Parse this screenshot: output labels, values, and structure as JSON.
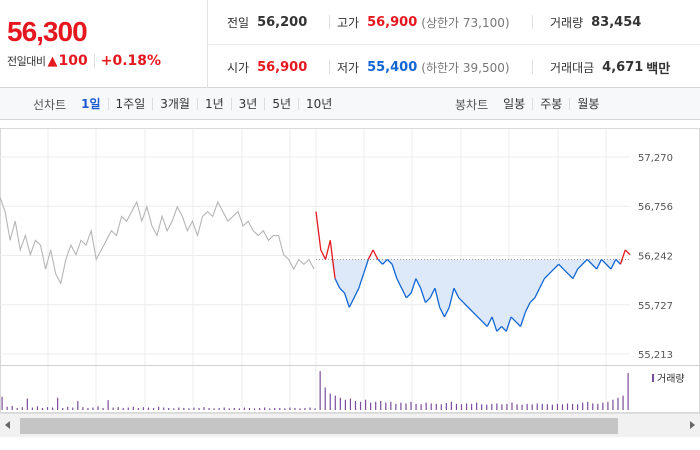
{
  "quote": {
    "price": "56,300",
    "change_label": "전일대비",
    "change_value": "100",
    "change_rate": "+0.18%",
    "prev_close_label": "전일",
    "prev_close": "56,200",
    "high_label": "고가",
    "high": "56,900",
    "upper_limit": "(상한가 73,100)",
    "volume_label": "거래량",
    "volume": "83,454",
    "open_label": "시가",
    "open": "56,900",
    "low_label": "저가",
    "low": "55,400",
    "lower_limit": "(하한가 39,500)",
    "turnover_label": "거래대금",
    "turnover": "4,671",
    "turnover_unit": "백만",
    "colors": {
      "up": "#e6181f",
      "down": "#1166d4"
    }
  },
  "toolbar": {
    "line_title": "선차트",
    "line_periods": [
      "1일",
      "1주일",
      "3개월",
      "1년",
      "3년",
      "5년",
      "10년"
    ],
    "active_period": "1일",
    "candle_title": "봉차트",
    "candle_periods": [
      "일봉",
      "주봉",
      "월봉"
    ]
  },
  "chart_data": {
    "type": "line",
    "ylim": [
      55213,
      57270
    ],
    "yticks": [
      57270,
      56756,
      56242,
      55727,
      55213
    ],
    "y_tick_labels": [
      "57,270",
      "56,756",
      "56,242",
      "55,727",
      "55,213"
    ],
    "reference_price": 56200,
    "series": [
      {
        "values": [
          56850,
          56700,
          56400,
          56600,
          56300,
          56450,
          56250,
          56400,
          56350,
          56100,
          56300,
          56050,
          55950,
          56200,
          56350,
          56250,
          56400,
          56350,
          56500,
          56200,
          56300,
          56400,
          56500,
          56450,
          56650,
          56600,
          56700,
          56800,
          56600,
          56750,
          56550,
          56450,
          56650,
          56500,
          56600,
          56750,
          56650,
          56500,
          56600,
          56450,
          56650,
          56700,
          56650,
          56800,
          56700,
          56600,
          56650,
          56700,
          56550,
          56600,
          56500,
          56450,
          56500,
          56400,
          56450,
          56450,
          56250,
          56200,
          56100,
          56200,
          56150,
          56200,
          56100
        ]
      },
      {
        "values": [
          56700,
          56300,
          56200,
          56400,
          56000,
          55900,
          55850,
          55700,
          55800,
          55900,
          56050,
          56200,
          56300,
          56200,
          56150,
          56200,
          56150,
          56000,
          55900,
          55800,
          55850,
          56000,
          55900,
          55750,
          55800,
          55900,
          55700,
          55600,
          55700,
          55900,
          55800,
          55750,
          55700,
          55650,
          55600,
          55550,
          55500,
          55600,
          55450,
          55500,
          55450,
          55600,
          55550,
          55500,
          55650,
          55750,
          55800,
          55900,
          56000,
          56050,
          56100,
          56150,
          56100,
          56050,
          56000,
          56100,
          56150,
          56200,
          56150,
          56100,
          56200,
          56150,
          56100,
          56200,
          56150,
          56300,
          56250
        ]
      }
    ],
    "volume": {
      "legend": "거래량",
      "values": [
        0.32,
        0.08,
        0.1,
        0.05,
        0.07,
        0.28,
        0.06,
        0.09,
        0.05,
        0.07,
        0.06,
        0.3,
        0.05,
        0.08,
        0.06,
        0.22,
        0.07,
        0.05,
        0.06,
        0.09,
        0.05,
        0.24,
        0.06,
        0.07,
        0.05,
        0.06,
        0.08,
        0.05,
        0.07,
        0.06,
        0.05,
        0.08,
        0.06,
        0.05,
        0.04,
        0.06,
        0.05,
        0.04,
        0.06,
        0.05,
        0.07,
        0.05,
        0.04,
        0.05,
        0.06,
        0.04,
        0.05,
        0.04,
        0.06,
        0.05,
        0.04,
        0.05,
        0.06,
        0.04,
        0.05,
        0.05,
        0.04,
        0.06,
        0.05,
        0.04,
        0.05,
        0.06,
        0.04,
        0.95,
        0.55,
        0.4,
        0.35,
        0.3,
        0.25,
        0.28,
        0.22,
        0.2,
        0.25,
        0.18,
        0.2,
        0.22,
        0.18,
        0.2,
        0.15,
        0.18,
        0.16,
        0.2,
        0.15,
        0.14,
        0.18,
        0.16,
        0.15,
        0.14,
        0.17,
        0.2,
        0.15,
        0.14,
        0.16,
        0.15,
        0.18,
        0.14,
        0.13,
        0.15,
        0.16,
        0.14,
        0.15,
        0.18,
        0.14,
        0.13,
        0.15,
        0.14,
        0.16,
        0.15,
        0.14,
        0.13,
        0.15,
        0.14,
        0.16,
        0.15,
        0.14,
        0.18,
        0.2,
        0.16,
        0.15,
        0.18,
        0.2,
        0.25,
        0.3,
        0.35,
        0.9
      ]
    }
  }
}
